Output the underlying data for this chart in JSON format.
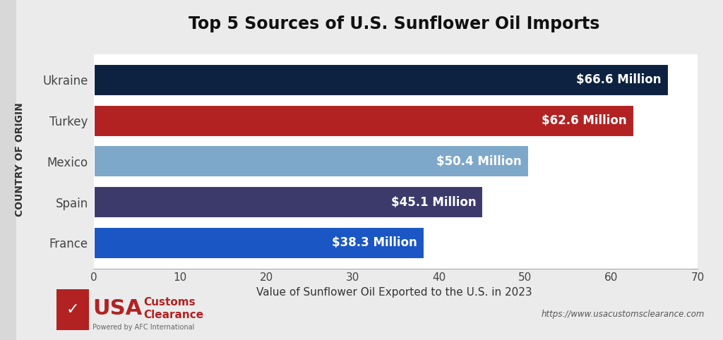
{
  "title": "Top 5 Sources of U.S. Sunflower Oil Imports",
  "ylabel": "COUNTRY OF ORIGIN",
  "xlabel": "Value of Sunflower Oil Exported to the U.S. in 2023",
  "categories": [
    "France",
    "Spain",
    "Mexico",
    "Turkey",
    "Ukraine"
  ],
  "values": [
    38.3,
    45.1,
    50.4,
    62.6,
    66.6
  ],
  "labels": [
    "$38.3 Million",
    "$45.1 Million",
    "$50.4 Million",
    "$62.6 Million",
    "$66.6 Million"
  ],
  "bar_colors": [
    "#1a56c4",
    "#3b3a6b",
    "#7ea8c9",
    "#b22222",
    "#0d2240"
  ],
  "xlim": [
    0,
    70
  ],
  "xticks": [
    0,
    10,
    20,
    30,
    40,
    50,
    60,
    70
  ],
  "background_color": "#ebebeb",
  "plot_bg_color": "#ffffff",
  "left_bar_color": "#d8d8d8",
  "title_fontsize": 17,
  "tick_fontsize": 11,
  "bar_label_fontsize": 12,
  "ylabel_fontsize": 10,
  "xlabel_fontsize": 11,
  "ytick_fontsize": 12,
  "footer_url": "https://www.usacustomsclearance.com",
  "bar_height": 0.78
}
